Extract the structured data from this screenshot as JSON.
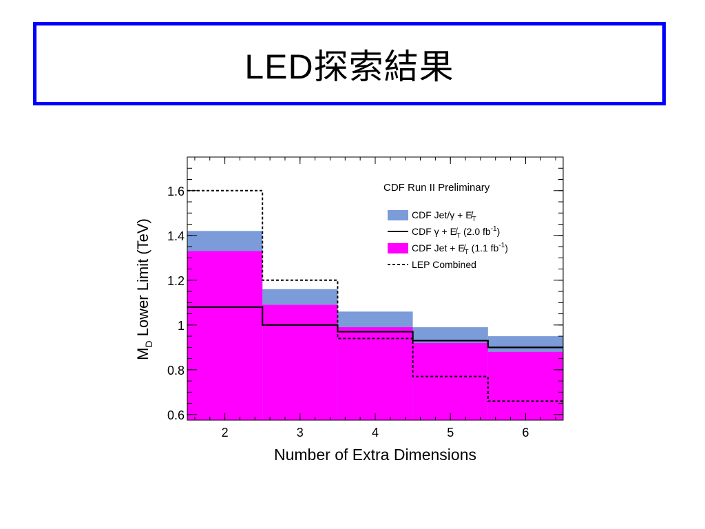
{
  "slide": {
    "title": "LED探索結果"
  },
  "chart_data": {
    "type": "step",
    "title": "CDF Run II Preliminary",
    "xlabel": "Number of Extra Dimensions",
    "ylabel": "M_D Lower Limit (TeV)",
    "ylabel_main": "M",
    "ylabel_sub": "D",
    "ylabel_rest": " Lower Limit (TeV)",
    "x_ticks": [
      "2",
      "3",
      "4",
      "5",
      "6"
    ],
    "y_ticks": [
      "0.6",
      "0.8",
      "1",
      "1.2",
      "1.4",
      "1.6"
    ],
    "xlim": [
      1.5,
      6.5
    ],
    "ylim": [
      0.575,
      1.75
    ],
    "x": [
      2,
      3,
      4,
      5,
      6
    ],
    "series": [
      {
        "name": "CDF Jet/γ + E̸T",
        "style": "fill",
        "color": "#7b9bd9",
        "values": [
          1.42,
          1.16,
          1.06,
          0.99,
          0.95
        ]
      },
      {
        "name": "CDF Jet + E̸T (1.1 fb⁻¹)",
        "style": "fill",
        "color": "#ff00ff",
        "values": [
          1.33,
          1.09,
          0.99,
          0.92,
          0.88
        ]
      },
      {
        "name": "CDF γ + E̸T (2.0 fb⁻¹)",
        "style": "solid",
        "color": "#000000",
        "values": [
          1.08,
          1.0,
          0.97,
          0.93,
          0.9
        ]
      },
      {
        "name": "LEP Combined",
        "style": "dashed",
        "color": "#000000",
        "values": [
          1.6,
          1.2,
          0.94,
          0.77,
          0.66
        ]
      }
    ],
    "legend_position": "top-right",
    "legend": [
      {
        "kind": "fill",
        "color": "#7b9bd9",
        "prefix": "CDF  Jet/",
        "sym1": "γ",
        "mid": " + ",
        "etmiss": "E̸",
        "etsub": "T",
        "lumi_pre": "",
        "lumi_sup": "",
        "lumi_post": ""
      },
      {
        "kind": "solid",
        "color": "#000000",
        "prefix": "CDF  ",
        "sym1": "γ",
        "mid": " + ",
        "etmiss": "E̸",
        "etsub": "T",
        "lumi_pre": "  (2.0 fb",
        "lumi_sup": "-1",
        "lumi_post": ")"
      },
      {
        "kind": "fill",
        "color": "#ff00ff",
        "prefix": "CDF Jet",
        "sym1": "",
        "mid": " + ",
        "etmiss": "E̸",
        "etsub": "T",
        "lumi_pre": " (1.1 fb",
        "lumi_sup": "-1",
        "lumi_post": ")"
      },
      {
        "kind": "dashed",
        "color": "#000000",
        "prefix": "LEP Combined",
        "sym1": "",
        "mid": "",
        "etmiss": "",
        "etsub": "",
        "lumi_pre": "",
        "lumi_sup": "",
        "lumi_post": ""
      }
    ]
  }
}
